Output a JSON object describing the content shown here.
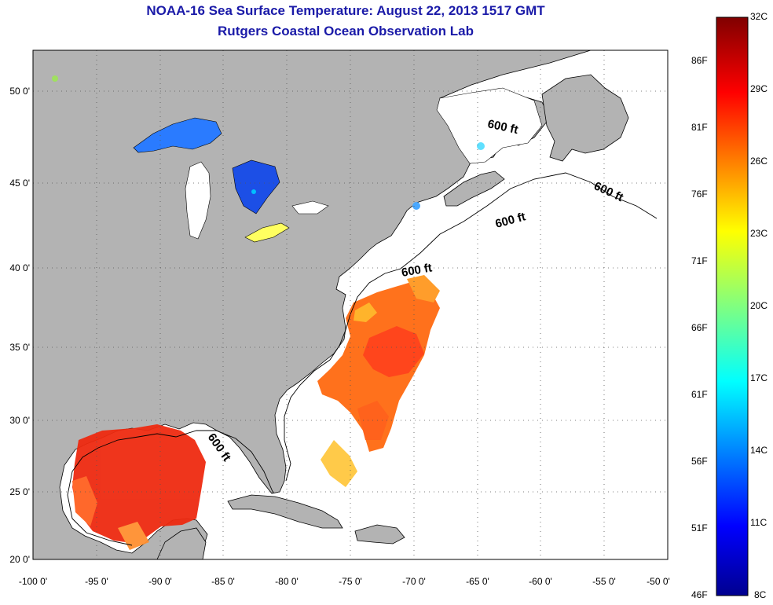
{
  "title": "NOAA-16 Sea Surface Temperature:  August 22, 2013 1517 GMT",
  "subtitle": "Rutgers Coastal Ocean Observation Lab",
  "map": {
    "lon_range": [
      -100,
      -50
    ],
    "lat_range": [
      20,
      52
    ],
    "grid": true,
    "lon_ticks": [
      "-100 0'",
      "-95 0'",
      "-90 0'",
      "-85 0'",
      "-80 0'",
      "-75 0'",
      "-70 0'",
      "-65 0'",
      "-60 0'",
      "-55 0'",
      "-50 0'"
    ],
    "lat_ticks": [
      "20 0'",
      "25 0'",
      "30 0'",
      "35 0'",
      "40 0'",
      "45 0'",
      "50 0'"
    ],
    "isobath_labels": [
      "600 ft",
      "600 ft",
      "600 ft",
      "600 ft",
      "600 ft"
    ],
    "colors": {
      "land": "#b3b3b3",
      "ocean": "#ffffff",
      "title": "#1a1aa8"
    }
  },
  "colorbar": {
    "celsius": [
      "32C",
      "29C",
      "26C",
      "23C",
      "20C",
      "17C",
      "14C",
      "11C",
      "8C"
    ],
    "fahrenheit": [
      "86F",
      "81F",
      "76F",
      "71F",
      "66F",
      "61F",
      "56F",
      "51F",
      "46F"
    ],
    "colors": [
      "#800000",
      "#ff0000",
      "#ff8000",
      "#ffff00",
      "#80ff80",
      "#00ffff",
      "#0080ff",
      "#0000ff",
      "#00008f"
    ]
  }
}
